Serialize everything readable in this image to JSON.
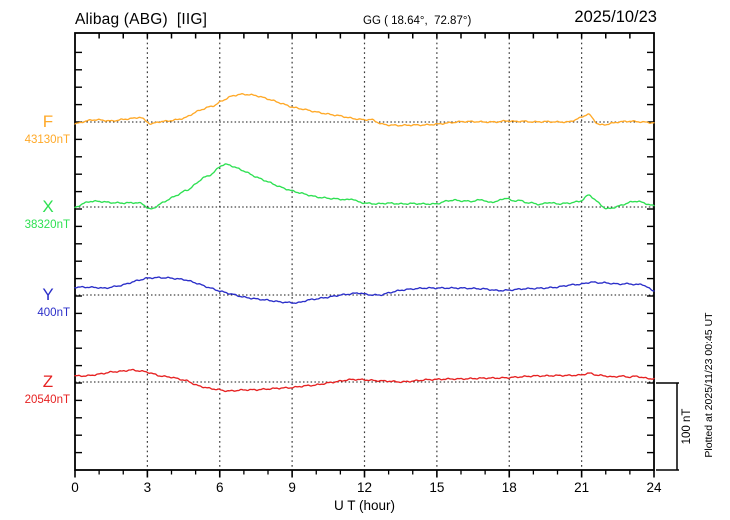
{
  "header": {
    "station_title": "Alibag (ABG)  [IIG]",
    "coords": "GG ( 18.64°,  72.87°)",
    "date": "2025/10/23"
  },
  "footnote": "Plotted at 2025/11/23 00:45 UT",
  "chart_data": {
    "type": "line",
    "title": "Alibag (ABG) [IIG] magnetogram for 2025/10/23",
    "xlabel": "U T (hour)",
    "x_range": [
      0,
      24
    ],
    "x_major_ticks": [
      0,
      3,
      6,
      9,
      12,
      15,
      18,
      21,
      24
    ],
    "x_minor_tick_step_hours": 1,
    "y_minor_tick_step_nT": 20,
    "grid": "dotted vertical lines every 3 h; dotted horizontal line at each channel baseline",
    "scale_bar": {
      "label": "100 nT",
      "nT": 100
    },
    "series_units": "nT offset from channel baseline",
    "series": [
      {
        "name": "F",
        "baseline_label": "43130nT",
        "baseline_nT": 43130,
        "color": "#ffa928",
        "points": [
          [
            0,
            -2.5
          ],
          [
            0.3,
            0
          ],
          [
            0.7,
            2.5
          ],
          [
            1,
            2.5
          ],
          [
            1.5,
            1
          ],
          [
            2,
            3
          ],
          [
            2.5,
            4.5
          ],
          [
            2.7,
            6
          ],
          [
            3,
            0
          ],
          [
            3.15,
            -3
          ],
          [
            3.4,
            0
          ],
          [
            3.8,
            1
          ],
          [
            4.2,
            2.5
          ],
          [
            4.6,
            5
          ],
          [
            5,
            11.5
          ],
          [
            5.5,
            17
          ],
          [
            5.8,
            19
          ],
          [
            6,
            23
          ],
          [
            6.5,
            30
          ],
          [
            6.9,
            32
          ],
          [
            7.2,
            31.5
          ],
          [
            7.5,
            30.5
          ],
          [
            8,
            26.5
          ],
          [
            8.5,
            22
          ],
          [
            9,
            17
          ],
          [
            9.5,
            14.5
          ],
          [
            10,
            11.5
          ],
          [
            10.5,
            9
          ],
          [
            11,
            7
          ],
          [
            11.5,
            4
          ],
          [
            12,
            2.5
          ],
          [
            12.3,
            3
          ],
          [
            12.7,
            -2.5
          ],
          [
            13,
            -3.5
          ],
          [
            13.5,
            -4
          ],
          [
            14,
            -3.5
          ],
          [
            14.5,
            -3.5
          ],
          [
            15,
            -2.5
          ],
          [
            15.5,
            -1
          ],
          [
            16,
            0.5
          ],
          [
            16.5,
            0.5
          ],
          [
            17,
            0
          ],
          [
            17.5,
            0
          ],
          [
            17.9,
            1.5
          ],
          [
            18.2,
            0.5
          ],
          [
            18.5,
            1
          ],
          [
            19,
            0
          ],
          [
            19.5,
            0.5
          ],
          [
            20,
            0
          ],
          [
            20.5,
            0
          ],
          [
            21,
            5.5
          ],
          [
            21.3,
            10
          ],
          [
            21.5,
            2.5
          ],
          [
            21.7,
            -3.5
          ],
          [
            22,
            -3
          ],
          [
            22.5,
            0
          ],
          [
            23,
            1
          ],
          [
            23.5,
            0
          ],
          [
            24,
            -1
          ]
        ]
      },
      {
        "name": "X",
        "baseline_label": "38320nT",
        "baseline_nT": 38320,
        "color": "#2ee052",
        "points": [
          [
            0,
            -1
          ],
          [
            0.3,
            3.5
          ],
          [
            0.6,
            6.5
          ],
          [
            1,
            6.5
          ],
          [
            1.5,
            5
          ],
          [
            2,
            4.5
          ],
          [
            2.5,
            5
          ],
          [
            2.8,
            4
          ],
          [
            3.05,
            -2.5
          ],
          [
            3.2,
            -2.5
          ],
          [
            3.5,
            3
          ],
          [
            4,
            10.5
          ],
          [
            4.4,
            16
          ],
          [
            4.55,
            19
          ],
          [
            4.7,
            19.5
          ],
          [
            5,
            26.5
          ],
          [
            5.3,
            33.5
          ],
          [
            5.5,
            35.5
          ],
          [
            5.7,
            38
          ],
          [
            6,
            47
          ],
          [
            6.2,
            49
          ],
          [
            6.4,
            48.5
          ],
          [
            6.6,
            46
          ],
          [
            7,
            41.5
          ],
          [
            7.5,
            34.5
          ],
          [
            8,
            29
          ],
          [
            8.5,
            23
          ],
          [
            9,
            18.5
          ],
          [
            9.5,
            15
          ],
          [
            10,
            11.5
          ],
          [
            10.5,
            10
          ],
          [
            11,
            9
          ],
          [
            11.3,
            8
          ],
          [
            11.5,
            10
          ],
          [
            11.7,
            6
          ],
          [
            12,
            4.5
          ],
          [
            12.5,
            3.5
          ],
          [
            13,
            4.5
          ],
          [
            13.5,
            3.5
          ],
          [
            14,
            4
          ],
          [
            14.5,
            3.5
          ],
          [
            15,
            3.5
          ],
          [
            15.4,
            7
          ],
          [
            15.7,
            8
          ],
          [
            16,
            7
          ],
          [
            16.5,
            6.5
          ],
          [
            16.9,
            9
          ],
          [
            17.1,
            5
          ],
          [
            17.5,
            6.5
          ],
          [
            17.9,
            11
          ],
          [
            18.1,
            6.5
          ],
          [
            18.4,
            8
          ],
          [
            18.7,
            5
          ],
          [
            19,
            4.5
          ],
          [
            19.3,
            2.5
          ],
          [
            19.6,
            5.5
          ],
          [
            20,
            3.5
          ],
          [
            20.5,
            4.5
          ],
          [
            21,
            7
          ],
          [
            21.3,
            15
          ],
          [
            21.6,
            7
          ],
          [
            21.8,
            2.5
          ],
          [
            22,
            -2.5
          ],
          [
            22.3,
            -1
          ],
          [
            22.7,
            2.5
          ],
          [
            23,
            5.5
          ],
          [
            23.3,
            7
          ],
          [
            23.6,
            4.5
          ],
          [
            24,
            1
          ]
        ]
      },
      {
        "name": "Y",
        "baseline_label": "400nT",
        "baseline_nT": 400,
        "color": "#2b2fc9",
        "points": [
          [
            0,
            9
          ],
          [
            0.5,
            9
          ],
          [
            1,
            8.5
          ],
          [
            1.2,
            7.5
          ],
          [
            1.5,
            9
          ],
          [
            2,
            11.5
          ],
          [
            2.5,
            16
          ],
          [
            3,
            19.5
          ],
          [
            3.5,
            20
          ],
          [
            4,
            19.5
          ],
          [
            4.2,
            18.5
          ],
          [
            4.5,
            18
          ],
          [
            5,
            14
          ],
          [
            5.5,
            9
          ],
          [
            6,
            4.5
          ],
          [
            6.5,
            1
          ],
          [
            7,
            -2.5
          ],
          [
            7.5,
            -4.5
          ],
          [
            8,
            -6
          ],
          [
            8.5,
            -8
          ],
          [
            9,
            -9
          ],
          [
            9.3,
            -9
          ],
          [
            9.6,
            -6
          ],
          [
            10,
            -4.5
          ],
          [
            10.5,
            -2.5
          ],
          [
            11,
            0
          ],
          [
            11.5,
            1.5
          ],
          [
            11.8,
            2.5
          ],
          [
            12,
            1
          ],
          [
            12.3,
            0
          ],
          [
            12.7,
            0
          ],
          [
            13,
            2.5
          ],
          [
            13.5,
            5.5
          ],
          [
            14,
            7
          ],
          [
            14.5,
            8
          ],
          [
            15,
            8
          ],
          [
            15.5,
            8
          ],
          [
            16,
            8
          ],
          [
            16.5,
            7.5
          ],
          [
            17,
            7
          ],
          [
            17.5,
            5
          ],
          [
            18,
            5.5
          ],
          [
            18.5,
            7
          ],
          [
            19,
            7.5
          ],
          [
            19.5,
            8
          ],
          [
            20,
            9
          ],
          [
            20.5,
            11.5
          ],
          [
            21,
            12.5
          ],
          [
            21.4,
            15
          ],
          [
            21.7,
            14
          ],
          [
            22,
            14
          ],
          [
            22.5,
            12.5
          ],
          [
            23,
            13
          ],
          [
            23.3,
            11.5
          ],
          [
            23.5,
            13
          ],
          [
            23.7,
            9
          ],
          [
            24,
            4.5
          ]
        ]
      },
      {
        "name": "Z",
        "baseline_label": "20540nT",
        "baseline_nT": 20540,
        "color": "#e62222",
        "points": [
          [
            0,
            7
          ],
          [
            0.5,
            7
          ],
          [
            1,
            9
          ],
          [
            1.5,
            11.5
          ],
          [
            2,
            12.5
          ],
          [
            2.3,
            14
          ],
          [
            2.6,
            13
          ],
          [
            3,
            11.5
          ],
          [
            3.5,
            7
          ],
          [
            4,
            5.5
          ],
          [
            4.3,
            3.5
          ],
          [
            4.7,
            1
          ],
          [
            5,
            -3.5
          ],
          [
            5.5,
            -7
          ],
          [
            6,
            -9
          ],
          [
            6.3,
            -10.5
          ],
          [
            6.6,
            -10
          ],
          [
            7,
            -9
          ],
          [
            7.5,
            -9
          ],
          [
            8,
            -8
          ],
          [
            8.5,
            -7
          ],
          [
            9,
            -6.5
          ],
          [
            9.5,
            -4.5
          ],
          [
            10,
            -3.5
          ],
          [
            10.5,
            -1
          ],
          [
            11,
            1
          ],
          [
            11.3,
            2.5
          ],
          [
            11.6,
            3
          ],
          [
            12,
            2.5
          ],
          [
            12.5,
            1.5
          ],
          [
            13,
            1
          ],
          [
            13.5,
            0
          ],
          [
            14,
            1
          ],
          [
            14.5,
            2.5
          ],
          [
            15,
            3
          ],
          [
            15.5,
            3.5
          ],
          [
            16,
            3.5
          ],
          [
            16.5,
            4
          ],
          [
            17,
            4.5
          ],
          [
            17.5,
            4.5
          ],
          [
            18,
            5
          ],
          [
            18.5,
            6
          ],
          [
            19,
            7
          ],
          [
            19.5,
            7
          ],
          [
            20,
            7.5
          ],
          [
            20.5,
            7.5
          ],
          [
            21,
            8
          ],
          [
            21.3,
            10.5
          ],
          [
            21.6,
            8
          ],
          [
            22,
            7
          ],
          [
            22.3,
            5.5
          ],
          [
            22.6,
            7
          ],
          [
            23,
            5.5
          ],
          [
            23.3,
            7
          ],
          [
            23.5,
            5
          ],
          [
            23.8,
            4
          ],
          [
            24,
            3.5
          ]
        ]
      }
    ]
  }
}
